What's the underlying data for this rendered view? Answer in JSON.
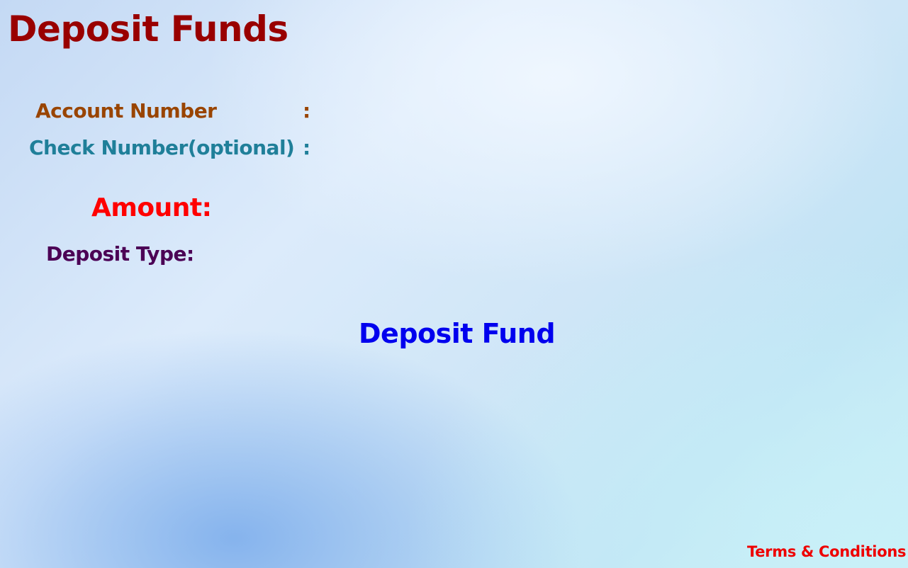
{
  "page": {
    "title": "Deposit Funds"
  },
  "form": {
    "account_number_label": "Account Number",
    "account_number_colon": ":",
    "check_number_label": "Check Number(optional)",
    "check_number_colon": ":",
    "amount_label": "Amount:",
    "deposit_type_label": "Deposit Type:"
  },
  "actions": {
    "deposit_label": "Deposit Fund"
  },
  "footer": {
    "terms_label": "Terms & Conditions"
  },
  "colors": {
    "title": "#990000",
    "account_label": "#994400",
    "check_label": "#1f7f99",
    "amount_label": "#ff0000",
    "deposit_type_label": "#4b0055",
    "deposit_button": "#0000ee",
    "terms_link": "#ee0000"
  }
}
